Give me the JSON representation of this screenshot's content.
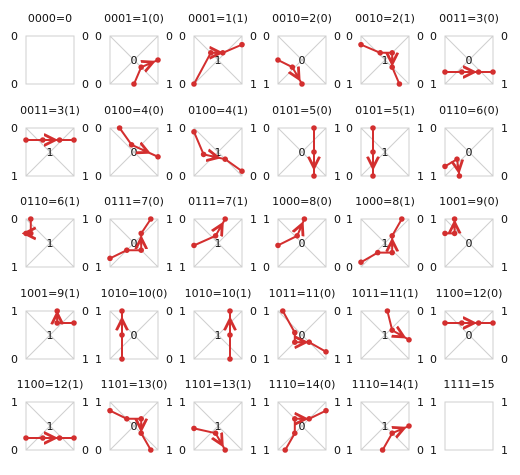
{
  "style": {
    "arrow_color": "#d32f2f",
    "frame_color": "#cfcfcf",
    "text_color": "#111111"
  },
  "tiles": [
    {
      "caption": "0000=0",
      "corners": [
        "0",
        "0",
        "0",
        "0"
      ],
      "center_label": "",
      "path": []
    },
    {
      "caption": "0001=1(0)",
      "corners": [
        "0",
        "0",
        "0",
        "1"
      ],
      "center_label": "0",
      "path": [
        [
          0.5,
          1
        ],
        [
          0.65,
          0.65
        ],
        [
          1,
          0.5
        ]
      ]
    },
    {
      "caption": "0001=1(1)",
      "corners": [
        "0",
        "0",
        "0",
        "1"
      ],
      "center_label": "1",
      "path": [
        [
          0,
          1
        ],
        [
          0.35,
          0.35
        ],
        [
          0.6,
          0.35
        ],
        [
          1,
          0.18
        ]
      ]
    },
    {
      "caption": "0010=2(0)",
      "corners": [
        "0",
        "0",
        "1",
        "0"
      ],
      "center_label": "0",
      "path": [
        [
          0,
          0.5
        ],
        [
          0.3,
          0.65
        ],
        [
          0.5,
          1
        ]
      ]
    },
    {
      "caption": "0010=2(1)",
      "corners": [
        "0",
        "0",
        "1",
        "0"
      ],
      "center_label": "1",
      "path": [
        [
          0,
          0.18
        ],
        [
          0.4,
          0.35
        ],
        [
          0.65,
          0.35
        ],
        [
          0.65,
          0.65
        ],
        [
          0.8,
          1
        ]
      ]
    },
    {
      "caption": "0011=3(0)",
      "corners": [
        "0",
        "0",
        "1",
        "1"
      ],
      "center_label": "0",
      "path": [
        [
          0,
          0.75
        ],
        [
          0.35,
          0.75
        ],
        [
          0.7,
          0.75
        ],
        [
          1,
          0.75
        ]
      ]
    },
    {
      "caption": "0011=3(1)",
      "corners": [
        "0",
        "0",
        "1",
        "1"
      ],
      "center_label": "1",
      "path": [
        [
          0,
          0.25
        ],
        [
          0.35,
          0.25
        ],
        [
          0.7,
          0.25
        ],
        [
          1,
          0.25
        ]
      ]
    },
    {
      "caption": "0100=4(0)",
      "corners": [
        "0",
        "1",
        "0",
        "0"
      ],
      "center_label": "0",
      "path": [
        [
          0.2,
          0
        ],
        [
          0.45,
          0.35
        ],
        [
          1,
          0.6
        ]
      ]
    },
    {
      "caption": "0100=4(1)",
      "corners": [
        "0",
        "1",
        "0",
        "0"
      ],
      "center_label": "1",
      "path": [
        [
          0,
          0.08
        ],
        [
          0.2,
          0.55
        ],
        [
          0.65,
          0.65
        ],
        [
          1,
          0.9
        ]
      ]
    },
    {
      "caption": "0101=5(0)",
      "corners": [
        "0",
        "1",
        "0",
        "1"
      ],
      "center_label": "0",
      "path": [
        [
          0.75,
          0
        ],
        [
          0.75,
          0.5
        ],
        [
          0.75,
          1
        ]
      ]
    },
    {
      "caption": "0101=5(1)",
      "corners": [
        "0",
        "1",
        "0",
        "1"
      ],
      "center_label": "1",
      "path": [
        [
          0.25,
          0
        ],
        [
          0.25,
          0.5
        ],
        [
          0.25,
          1
        ]
      ]
    },
    {
      "caption": "0110=6(0)",
      "corners": [
        "0",
        "1",
        "1",
        "0"
      ],
      "center_label": "0",
      "path": [
        [
          0,
          0.8
        ],
        [
          0.25,
          0.65
        ],
        [
          0.3,
          1
        ]
      ]
    },
    {
      "caption": "0110=6(1)",
      "corners": [
        "0",
        "1",
        "1",
        "0"
      ],
      "center_label": "1",
      "path": [
        [
          0.1,
          0
        ],
        [
          0.1,
          0.3
        ],
        [
          0.0,
          0.3
        ]
      ]
    },
    {
      "caption": "0111=7(0)",
      "corners": [
        "0",
        "1",
        "1",
        "1"
      ],
      "center_label": "0",
      "path": [
        [
          0,
          0.82
        ],
        [
          0.35,
          0.65
        ],
        [
          0.65,
          0.65
        ],
        [
          0.65,
          0.3
        ],
        [
          0.85,
          0
        ]
      ]
    },
    {
      "caption": "0111=7(1)",
      "corners": [
        "0",
        "1",
        "1",
        "1"
      ],
      "center_label": "1",
      "path": [
        [
          0,
          0.55
        ],
        [
          0.45,
          0.35
        ],
        [
          0.65,
          0
        ]
      ]
    },
    {
      "caption": "1000=8(0)",
      "corners": [
        "1",
        "0",
        "0",
        "0"
      ],
      "center_label": "0",
      "path": [
        [
          0,
          0.55
        ],
        [
          0.4,
          0.35
        ],
        [
          0.55,
          0
        ]
      ]
    },
    {
      "caption": "1000=8(1)",
      "corners": [
        "1",
        "0",
        "0",
        "0"
      ],
      "center_label": "1",
      "path": [
        [
          0,
          0.9
        ],
        [
          0.35,
          0.7
        ],
        [
          0.65,
          0.7
        ],
        [
          0.65,
          0.35
        ],
        [
          0.85,
          0
        ]
      ]
    },
    {
      "caption": "1001=9(0)",
      "corners": [
        "1",
        "0",
        "0",
        "1"
      ],
      "center_label": "0",
      "path": [
        [
          0,
          0.3
        ],
        [
          0.2,
          0.3
        ],
        [
          0.2,
          0
        ]
      ]
    },
    {
      "caption": "1001=9(1)",
      "corners": [
        "1",
        "0",
        "0",
        "1"
      ],
      "center_label": "1",
      "path": [
        [
          1,
          0.25
        ],
        [
          0.65,
          0.25
        ],
        [
          0.65,
          0
        ]
      ]
    },
    {
      "caption": "1010=10(0)",
      "corners": [
        "1",
        "0",
        "1",
        "0"
      ],
      "center_label": "0",
      "path": [
        [
          0.25,
          1
        ],
        [
          0.25,
          0.5
        ],
        [
          0.25,
          0
        ]
      ]
    },
    {
      "caption": "1010=10(1)",
      "corners": [
        "1",
        "0",
        "1",
        "0"
      ],
      "center_label": "1",
      "path": [
        [
          0.75,
          1
        ],
        [
          0.75,
          0.5
        ],
        [
          0.75,
          0
        ]
      ]
    },
    {
      "caption": "1011=11(0)",
      "corners": [
        "1",
        "0",
        "1",
        "1"
      ],
      "center_label": "0",
      "path": [
        [
          0.1,
          0
        ],
        [
          0.35,
          0.45
        ],
        [
          0.35,
          0.65
        ],
        [
          0.65,
          0.65
        ],
        [
          1,
          0.85
        ]
      ]
    },
    {
      "caption": "1011=11(1)",
      "corners": [
        "1",
        "0",
        "1",
        "1"
      ],
      "center_label": "1",
      "path": [
        [
          0.55,
          0
        ],
        [
          0.65,
          0.4
        ],
        [
          1,
          0.6
        ]
      ]
    },
    {
      "caption": "1100=12(0)",
      "corners": [
        "1",
        "1",
        "0",
        "0"
      ],
      "center_label": "0",
      "path": [
        [
          0,
          0.25
        ],
        [
          0.35,
          0.25
        ],
        [
          0.7,
          0.25
        ],
        [
          1,
          0.25
        ]
      ]
    },
    {
      "caption": "1100=12(1)",
      "corners": [
        "1",
        "1",
        "0",
        "0"
      ],
      "center_label": "1",
      "path": [
        [
          0,
          0.75
        ],
        [
          0.35,
          0.75
        ],
        [
          0.7,
          0.75
        ],
        [
          1,
          0.75
        ]
      ]
    },
    {
      "caption": "1101=13(0)",
      "corners": [
        "1",
        "1",
        "0",
        "1"
      ],
      "center_label": "0",
      "path": [
        [
          0,
          0.18
        ],
        [
          0.35,
          0.35
        ],
        [
          0.65,
          0.35
        ],
        [
          0.65,
          0.65
        ],
        [
          0.85,
          1
        ]
      ]
    },
    {
      "caption": "1101=13(1)",
      "corners": [
        "1",
        "1",
        "0",
        "1"
      ],
      "center_label": "1",
      "path": [
        [
          0,
          0.55
        ],
        [
          0.45,
          0.65
        ],
        [
          0.65,
          1
        ]
      ]
    },
    {
      "caption": "1110=14(0)",
      "corners": [
        "1",
        "1",
        "1",
        "0"
      ],
      "center_label": "0",
      "path": [
        [
          0.15,
          1
        ],
        [
          0.35,
          0.65
        ],
        [
          0.35,
          0.35
        ],
        [
          0.65,
          0.35
        ],
        [
          1,
          0.18
        ]
      ]
    },
    {
      "caption": "1110=14(1)",
      "corners": [
        "1",
        "1",
        "1",
        "0"
      ],
      "center_label": "1",
      "path": [
        [
          0.45,
          1
        ],
        [
          0.65,
          0.65
        ],
        [
          1,
          0.5
        ]
      ]
    },
    {
      "caption": "1111=15",
      "corners": [
        "1",
        "1",
        "1",
        "1"
      ],
      "center_label": "",
      "path": []
    }
  ]
}
